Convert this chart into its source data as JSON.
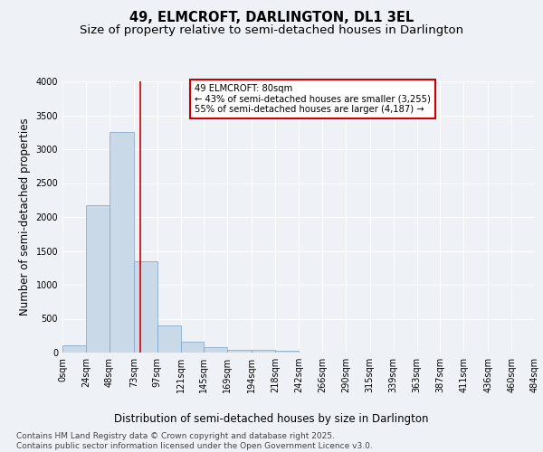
{
  "title": "49, ELMCROFT, DARLINGTON, DL1 3EL",
  "subtitle": "Size of property relative to semi-detached houses in Darlington",
  "xlabel": "Distribution of semi-detached houses by size in Darlington",
  "ylabel": "Number of semi-detached properties",
  "bin_edges": [
    0,
    24,
    48,
    73,
    97,
    121,
    145,
    169,
    194,
    218,
    242,
    266,
    290,
    315,
    339,
    363,
    387,
    411,
    436,
    460,
    484
  ],
  "bin_counts": [
    110,
    2170,
    3250,
    1350,
    400,
    160,
    80,
    45,
    35,
    30,
    0,
    0,
    0,
    0,
    0,
    0,
    0,
    0,
    0,
    0
  ],
  "bar_color": "#c9d9e8",
  "bar_edgecolor": "#7aa0c4",
  "property_size": 80,
  "red_line_x": 80,
  "annotation_title": "49 ELMCROFT: 80sqm",
  "annotation_line1": "← 43% of semi-detached houses are smaller (3,255)",
  "annotation_line2": "55% of semi-detached houses are larger (4,187) →",
  "annotation_box_color": "#ffffff",
  "annotation_box_edgecolor": "#cc0000",
  "red_line_color": "#cc0000",
  "ylim": [
    0,
    4000
  ],
  "yticks": [
    0,
    500,
    1000,
    1500,
    2000,
    2500,
    3000,
    3500,
    4000
  ],
  "tick_labels": [
    "0sqm",
    "24sqm",
    "48sqm",
    "73sqm",
    "97sqm",
    "121sqm",
    "145sqm",
    "169sqm",
    "194sqm",
    "218sqm",
    "242sqm",
    "266sqm",
    "290sqm",
    "315sqm",
    "339sqm",
    "363sqm",
    "387sqm",
    "411sqm",
    "436sqm",
    "460sqm",
    "484sqm"
  ],
  "background_color": "#eef2f7",
  "footer_text": "Contains HM Land Registry data © Crown copyright and database right 2025.\nContains public sector information licensed under the Open Government Licence v3.0.",
  "title_fontsize": 10.5,
  "subtitle_fontsize": 9.5,
  "axis_label_fontsize": 8.5,
  "tick_fontsize": 7,
  "footer_fontsize": 6.5
}
